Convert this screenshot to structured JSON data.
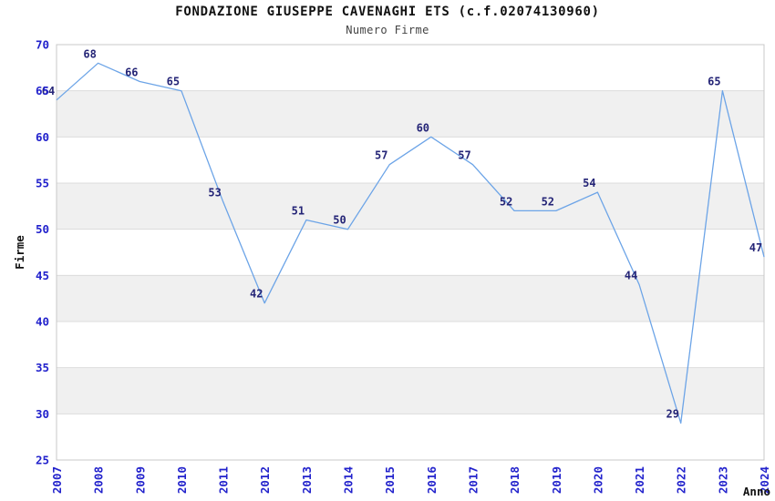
{
  "page": {
    "title": "FONDAZIONE GIUSEPPE CAVENAGHI ETS (c.f.02074130960)",
    "subtitle": "Numero Firme"
  },
  "chart_data": {
    "type": "line",
    "title": "FONDAZIONE GIUSEPPE CAVENAGHI ETS (c.f.02074130960)",
    "subtitle": "Numero Firme",
    "xlabel": "Anno",
    "ylabel": "Firme",
    "x": [
      "2007",
      "2008",
      "2009",
      "2010",
      "2011",
      "2012",
      "2013",
      "2014",
      "2015",
      "2016",
      "2017",
      "2018",
      "2019",
      "2020",
      "2021",
      "2022",
      "2023",
      "2024"
    ],
    "values": [
      64,
      68,
      66,
      65,
      53,
      42,
      51,
      50,
      57,
      60,
      57,
      52,
      52,
      54,
      44,
      29,
      65,
      47
    ],
    "ylim": [
      25,
      70
    ],
    "ytick_step": 5,
    "grid": "horizontal-bands",
    "legend": "none",
    "show_point_labels": true,
    "colors": {
      "line": "#6ca4e7",
      "tick_label": "#2222cc",
      "data_label": "#252577",
      "band": "#f0f0f0",
      "gridline": "#dcdcdc",
      "border": "#c8c8c8",
      "title": "#111111",
      "subtitle": "#444444",
      "axis_title": "#111111",
      "background": "#ffffff"
    }
  }
}
